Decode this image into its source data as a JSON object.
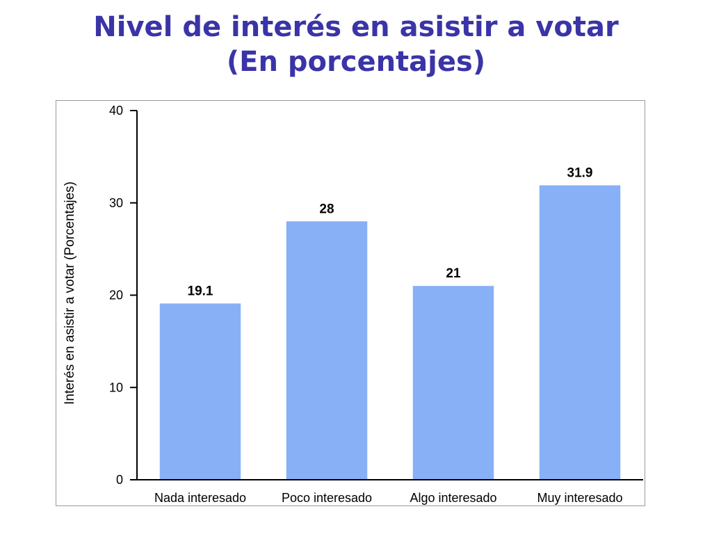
{
  "chart_data": {
    "type": "bar",
    "title_line1": "Nivel de interés en asistir a votar",
    "title_line2": "(En porcentajes)",
    "xlabel": "",
    "ylabel": "Interés en asistir a votar (Porcentajes)",
    "categories": [
      "Nada interesado",
      "Poco interesado",
      "Algo interesado",
      "Muy interesado"
    ],
    "values": [
      19.1,
      28,
      21,
      31.9
    ],
    "value_labels": [
      "19.1",
      "28",
      "21",
      "31.9"
    ],
    "ylim": [
      0,
      40
    ],
    "yticks": [
      0,
      10,
      20,
      30,
      40
    ],
    "grid": false,
    "legend": "none",
    "bar_color": "#88b0f6",
    "title_color": "#3a34a8"
  }
}
